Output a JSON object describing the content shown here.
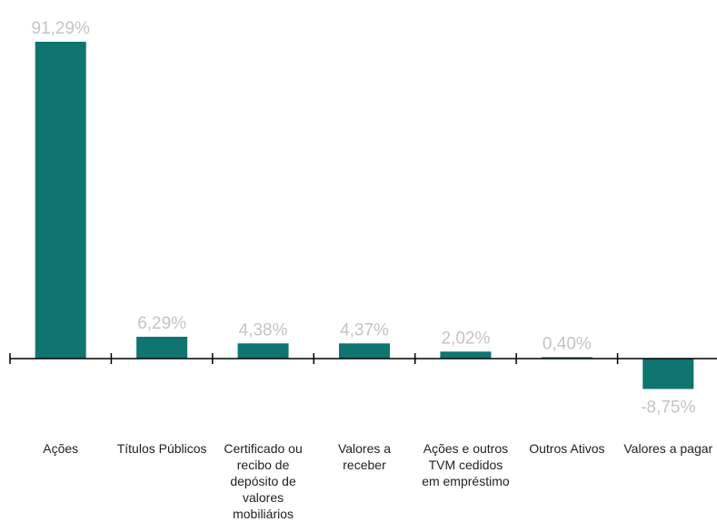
{
  "chart_data": {
    "type": "bar",
    "categories": [
      [
        "Ações"
      ],
      [
        "Títulos Públicos"
      ],
      [
        "Certificado ou",
        "recibo de",
        "depósito de",
        "valores",
        "mobiliários"
      ],
      [
        "Valores a",
        "receber"
      ],
      [
        "Ações e outros",
        "TVM cedidos",
        "em empréstimo"
      ],
      [
        "Outros Ativos"
      ],
      [
        "Valores a pagar"
      ]
    ],
    "values": [
      91.29,
      6.29,
      4.38,
      4.37,
      2.02,
      0.4,
      -8.75
    ],
    "value_labels": [
      "91,29%",
      "6,29%",
      "4,38%",
      "4,37%",
      "2,02%",
      "0,40%",
      "-8,75%"
    ],
    "ylim": [
      -8.75,
      91.29
    ],
    "colors": {
      "bar": "#0e7570",
      "axis": "#000000",
      "value_label": "#c4c4c4",
      "category_label": "#222222"
    },
    "grid": false,
    "title": "",
    "xlabel": "",
    "ylabel": ""
  }
}
